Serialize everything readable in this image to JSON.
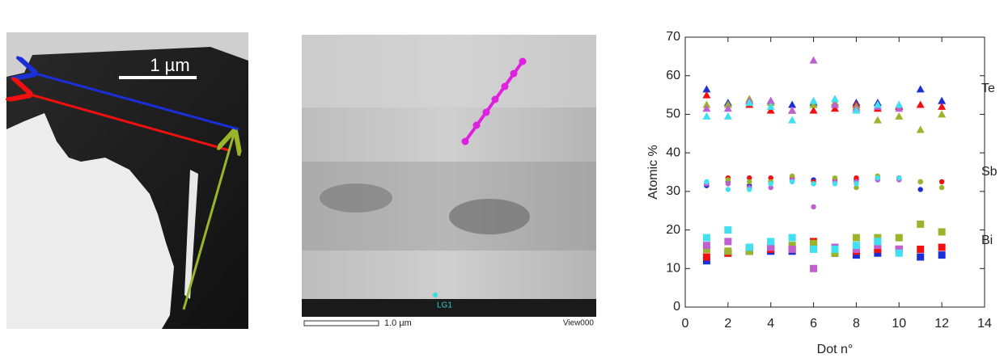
{
  "images": {
    "left": {
      "scale_label": "1 µm"
    },
    "middle": {
      "scale_label": "1.0 µm",
      "view_label": "View000",
      "point_label": "LG1"
    }
  },
  "chart_data": {
    "type": "scatter",
    "xlabel": "Dot n°",
    "ylabel": "Atomic %",
    "x": [
      1,
      2,
      3,
      4,
      5,
      6,
      7,
      8,
      9,
      10,
      11,
      12
    ],
    "xlim": [
      0,
      14
    ],
    "xticks": [
      0,
      2,
      4,
      6,
      8,
      10,
      12,
      14
    ],
    "ylim": [
      0,
      70
    ],
    "yticks": [
      0,
      10,
      20,
      30,
      40,
      50,
      60,
      70
    ],
    "annotations": [
      "Te",
      "Sb",
      "Bi"
    ],
    "series": [
      {
        "color": "#1a2fd6",
        "marker": "triangle",
        "values": [
          56.5,
          53,
          53.5,
          53.5,
          52.5,
          53,
          53,
          53,
          53,
          52,
          56.5,
          53.5
        ]
      },
      {
        "color": "#f01010",
        "marker": "triangle",
        "values": [
          55,
          52.5,
          52.5,
          51,
          51,
          51,
          51.5,
          52.5,
          51.5,
          52,
          52.5,
          52
        ]
      },
      {
        "color": "#9ab52a",
        "marker": "triangle",
        "values": [
          52.5,
          52.5,
          54,
          53,
          51,
          52.5,
          53,
          52,
          48.5,
          49.5,
          46,
          50
        ]
      },
      {
        "color": "#c060d0",
        "marker": "triangle",
        "values": [
          51.5,
          51.5,
          53.5,
          53.5,
          51,
          64,
          52.5,
          51.5,
          52,
          51.5,
          null,
          null
        ]
      },
      {
        "color": "#40e0f0",
        "marker": "triangle",
        "values": [
          49.5,
          49.5,
          53,
          52,
          48.5,
          53.5,
          54,
          51,
          52.5,
          52.5,
          null,
          null
        ]
      },
      {
        "color": "#1a2fd6",
        "marker": "circle",
        "values": [
          31.5,
          32.5,
          31.5,
          32.5,
          33,
          33,
          33,
          33,
          33,
          33.5,
          30.5,
          null
        ]
      },
      {
        "color": "#f01010",
        "marker": "circle",
        "values": [
          32,
          33.5,
          33.5,
          33.5,
          33.5,
          32.5,
          33,
          33.5,
          33.5,
          33.5,
          32.5,
          32.5
        ]
      },
      {
        "color": "#9ab52a",
        "marker": "circle",
        "values": [
          32,
          33,
          32.5,
          32.5,
          34,
          32,
          33.5,
          31,
          34,
          33,
          32.5,
          31
        ]
      },
      {
        "color": "#c060d0",
        "marker": "circle",
        "values": [
          32,
          32,
          31,
          31,
          33,
          26,
          32.5,
          32.5,
          33,
          33,
          null,
          null
        ]
      },
      {
        "color": "#40e0f0",
        "marker": "circle",
        "values": [
          32.5,
          30.5,
          30.5,
          32,
          32.5,
          32,
          32,
          32,
          33.5,
          33.5,
          null,
          null
        ]
      },
      {
        "color": "#1a2fd6",
        "marker": "square",
        "values": [
          12,
          14,
          14.5,
          14.5,
          14.5,
          15.5,
          14,
          13.5,
          14,
          15,
          13,
          13.5
        ]
      },
      {
        "color": "#f01010",
        "marker": "square",
        "values": [
          13,
          14,
          14.5,
          15,
          15,
          17,
          14,
          14.5,
          15,
          15,
          15,
          15.5
        ]
      },
      {
        "color": "#9ab52a",
        "marker": "square",
        "values": [
          15,
          14.5,
          14.5,
          16,
          16,
          16.5,
          14,
          18,
          18,
          18,
          21.5,
          19.5
        ]
      },
      {
        "color": "#c060d0",
        "marker": "square",
        "values": [
          16,
          17,
          15.5,
          15.5,
          15,
          10,
          15.5,
          15,
          16,
          15,
          null,
          null
        ]
      },
      {
        "color": "#40e0f0",
        "marker": "square",
        "values": [
          18,
          20,
          15.5,
          17,
          18,
          15,
          15,
          16,
          17,
          14,
          null,
          null
        ]
      }
    ]
  }
}
